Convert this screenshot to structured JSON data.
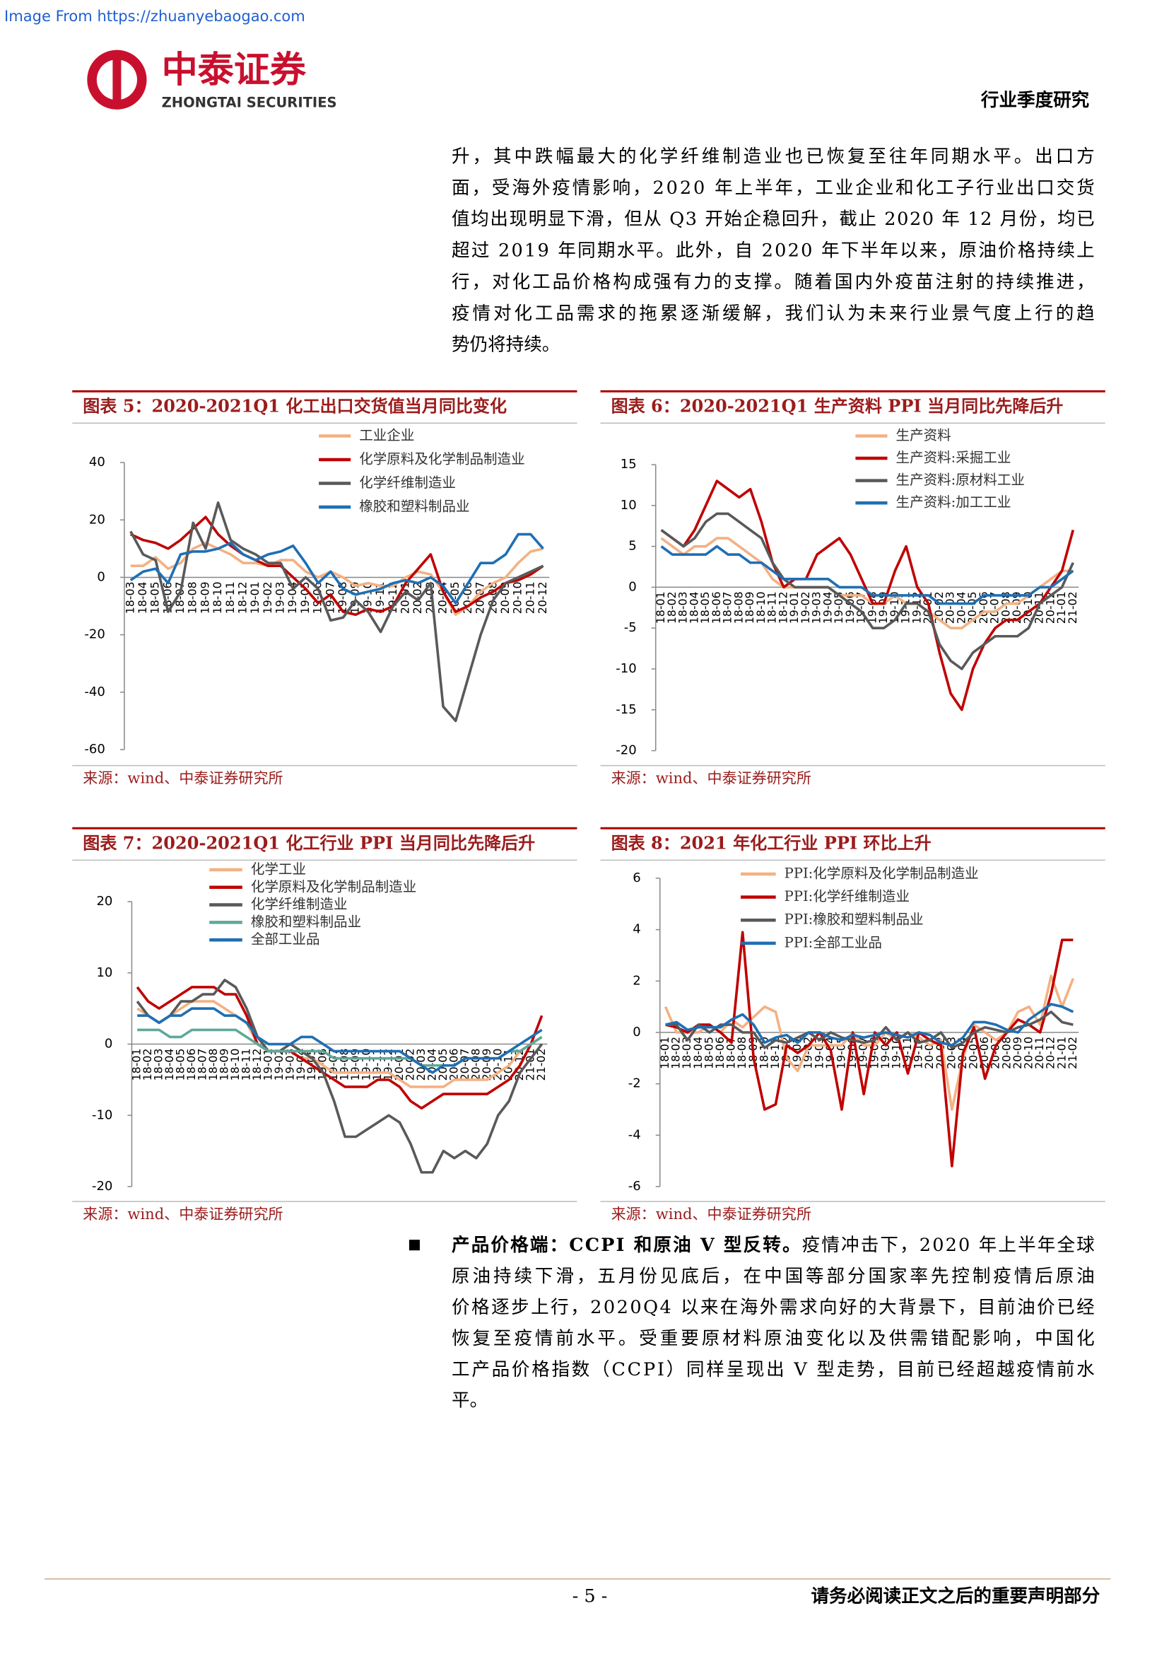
{
  "header": {
    "watermark": "Image From https://zhuanyebaogao.com",
    "logo_cn": "中泰证券",
    "logo_en": "ZHONGTAI SECURITIES",
    "report_type": "行业季度研究"
  },
  "body": {
    "paragraph_lines": [
      "升，其中跌幅最大的化学纤维制造业也已恢复至往年同期水平。出口方",
      "面，受海外疫情影响，2020 年上半年，工业企业和化工子行业出口交货",
      "值均出现明显下滑，但从 Q3 开始企稳回升，截止 2020 年 12 月份，均已",
      "超过 2019 年同期水平。此外，自 2020 年下半年以来，原油价格持续上",
      "行，对化工品价格构成强有力的支撑。随着国内外疫苗注射的持续推进，",
      "疫情对化工品需求的拖累逐渐缓解，我们认为未来行业景气度上行的趋",
      "势仍将持续。"
    ],
    "bullet_lead": "产品价格端：CCPI 和原油 V 型反转。",
    "bullet_lines": [
      "疫情冲击下，2020 年上半年全球",
      "原油持续下滑，五月份见底后，在中国等部分国家率先控制疫情后原油",
      "价格逐步上行，2020Q4 以来在海外需求向好的大背景下，目前油价已经",
      "恢复至疫情前水平。受重要原材料原油变化以及供需错配影响，中国化",
      "工产品价格指数（CCPI）同样呈现出 V 型走势，目前已经超越疫情前水",
      "平。"
    ]
  },
  "chart_data": [
    {
      "type": "line",
      "title": "图表 5：2020-2021Q1 化工出口交货值当月同比变化",
      "source": "来源：wind、中泰证券研究所",
      "categories": [
        "18-03",
        "18-04",
        "18-05",
        "18-06",
        "18-07",
        "18-08",
        "18-09",
        "18-10",
        "18-11",
        "18-12",
        "19-01",
        "19-02",
        "19-03",
        "19-04",
        "19-05",
        "19-06",
        "19-07",
        "19-08",
        "19-09",
        "19-10",
        "19-11",
        "19-12",
        "20-01",
        "20-02",
        "20-03",
        "20-04",
        "20-05",
        "20-06",
        "20-07",
        "20-08",
        "20-09",
        "20-10",
        "20-11",
        "20-12"
      ],
      "ylim": [
        -60,
        40
      ],
      "yticks": [
        -60,
        -40,
        -20,
        0,
        20,
        40
      ],
      "series": [
        {
          "name": "工业企业",
          "color": "#f4b183",
          "values": [
            4,
            4,
            7,
            3,
            5,
            10,
            12,
            10,
            8,
            5,
            5,
            4,
            6,
            6,
            2,
            0,
            2,
            0,
            -3,
            -2,
            -3,
            -3,
            0,
            2,
            1,
            -5,
            -13,
            -10,
            -5,
            -2,
            0,
            5,
            9,
            10
          ]
        },
        {
          "name": "化学原料及化学制品制造业",
          "color": "#c00000",
          "values": [
            15,
            13,
            12,
            10,
            13,
            17,
            21,
            15,
            11,
            8,
            6,
            4,
            4,
            0,
            -4,
            -9,
            -6,
            -12,
            -13,
            -11,
            -12,
            -10,
            -2,
            3,
            8,
            -5,
            -12,
            -10,
            -7,
            -5,
            -2,
            -1,
            1,
            4
          ]
        },
        {
          "name": "化学纤维制造业",
          "color": "#595959",
          "values": [
            16,
            8,
            6,
            -12,
            -5,
            19,
            10,
            26,
            13,
            10,
            8,
            5,
            5,
            -4,
            0,
            -4,
            -15,
            -14,
            -8,
            -12,
            -19,
            -10,
            -5,
            -8,
            -2,
            -45,
            -50,
            -35,
            -20,
            -8,
            -2,
            0,
            2,
            4
          ]
        },
        {
          "name": "橡胶和塑料制品业",
          "color": "#1f6fb4",
          "values": [
            -1,
            2,
            3,
            -2,
            8,
            9,
            9,
            10,
            12,
            8,
            6,
            8,
            9,
            11,
            5,
            -2,
            2,
            -4,
            -6,
            -5,
            -4,
            -2,
            -1,
            -2,
            0,
            -3,
            -9,
            -2,
            5,
            5,
            8,
            15,
            15,
            10
          ]
        }
      ]
    },
    {
      "type": "line",
      "title": "图表 6：2020-2021Q1 生产资料 PPI 当月同比先降后升",
      "source": "来源：wind、中泰证券研究所",
      "categories": [
        "18-01",
        "18-02",
        "18-03",
        "18-04",
        "18-05",
        "18-06",
        "18-07",
        "18-08",
        "18-09",
        "18-10",
        "18-11",
        "18-12",
        "19-01",
        "19-02",
        "19-03",
        "19-04",
        "19-05",
        "19-06",
        "19-07",
        "19-08",
        "19-09",
        "19-10",
        "19-11",
        "19-12",
        "20-01",
        "20-02",
        "20-03",
        "20-04",
        "20-05",
        "20-06",
        "20-07",
        "20-08",
        "20-09",
        "20-10",
        "20-11",
        "20-12",
        "21-01",
        "21-02"
      ],
      "ylim": [
        -20,
        15
      ],
      "yticks": [
        -20,
        -15,
        -10,
        -5,
        0,
        5,
        10,
        15
      ],
      "series": [
        {
          "name": "生产资料",
          "color": "#f4b183",
          "values": [
            6,
            5,
            4,
            5,
            5,
            6,
            6,
            5,
            4,
            3,
            1,
            0,
            0,
            0,
            0,
            0,
            -1,
            -1,
            -1,
            -2,
            -2,
            -1,
            -2,
            -2,
            -3,
            -4,
            -5,
            -5,
            -4,
            -3,
            -3,
            -2,
            -2,
            -1,
            0,
            1,
            2,
            2
          ]
        },
        {
          "name": "生产资料:采掘工业",
          "color": "#c00000",
          "values": [
            7,
            6,
            5,
            7,
            10,
            13,
            12,
            11,
            12,
            8,
            3,
            0,
            1,
            1,
            4,
            5,
            6,
            4,
            1,
            -2,
            -2,
            2,
            5,
            0,
            -2,
            -8,
            -13,
            -15,
            -10,
            -7,
            -5,
            -4,
            -4,
            -3,
            -2,
            0,
            2,
            7
          ]
        },
        {
          "name": "生产资料:原材料工业",
          "color": "#595959",
          "values": [
            7,
            6,
            5,
            6,
            8,
            9,
            9,
            8,
            7,
            6,
            3,
            1,
            0,
            0,
            0,
            0,
            -1,
            -2,
            -3,
            -5,
            -5,
            -4,
            -2,
            -2,
            -3,
            -7,
            -9,
            -10,
            -8,
            -7,
            -6,
            -6,
            -6,
            -5,
            -2,
            -1,
            0,
            3
          ]
        },
        {
          "name": "生产资料:加工工业",
          "color": "#1f6fb4",
          "values": [
            5,
            4,
            4,
            4,
            4,
            5,
            4,
            4,
            3,
            3,
            2,
            1,
            1,
            1,
            1,
            1,
            0,
            0,
            0,
            -1,
            -1,
            -1,
            -1,
            -1,
            -1,
            -2,
            -2,
            -2,
            -2,
            -1,
            -1,
            -1,
            -1,
            -1,
            0,
            0,
            1,
            2
          ]
        }
      ]
    },
    {
      "type": "line",
      "title": "图表 7：2020-2021Q1 化工行业 PPI 当月同比先降后升",
      "source": "来源：wind、中泰证券研究所",
      "categories": [
        "18-01",
        "18-02",
        "18-03",
        "18-04",
        "18-05",
        "18-06",
        "18-07",
        "18-08",
        "18-09",
        "18-10",
        "18-11",
        "18-12",
        "19-01",
        "19-02",
        "19-03",
        "19-04",
        "19-05",
        "19-06",
        "19-07",
        "19-08",
        "19-09",
        "19-10",
        "19-11",
        "19-12",
        "20-01",
        "20-02",
        "20-03",
        "20-04",
        "20-05",
        "20-06",
        "20-07",
        "20-08",
        "20-09",
        "20-10",
        "20-11",
        "20-12",
        "21-01",
        "21-02"
      ],
      "ylim": [
        -20,
        20
      ],
      "yticks": [
        -20,
        -10,
        0,
        10,
        20
      ],
      "series": [
        {
          "name": "化学工业",
          "color": "#f4b183",
          "values": [
            5,
            4,
            3,
            4,
            5,
            6,
            6,
            6,
            5,
            4,
            3,
            0,
            -1,
            -1,
            -1,
            -2,
            -2,
            -3,
            -4,
            -4,
            -4,
            -4,
            -4,
            -4,
            -5,
            -6,
            -6,
            -6,
            -6,
            -5,
            -5,
            -5,
            -5,
            -4,
            -3,
            -1,
            0,
            1
          ]
        },
        {
          "name": "化学原料及化学制品制造业",
          "color": "#c00000",
          "values": [
            8,
            6,
            5,
            6,
            7,
            8,
            8,
            8,
            7,
            7,
            4,
            0,
            -1,
            -1,
            -1,
            -2,
            -3,
            -4,
            -5,
            -6,
            -6,
            -6,
            -5,
            -5,
            -6,
            -8,
            -9,
            -8,
            -7,
            -7,
            -7,
            -7,
            -7,
            -6,
            -5,
            -3,
            0,
            4
          ]
        },
        {
          "name": "化学纤维制造业",
          "color": "#595959",
          "values": [
            6,
            4,
            3,
            4,
            6,
            6,
            7,
            7,
            9,
            8,
            5,
            1,
            -1,
            -1,
            0,
            -1,
            -2,
            -4,
            -8,
            -13,
            -13,
            -12,
            -11,
            -10,
            -11,
            -14,
            -18,
            -18,
            -15,
            -16,
            -15,
            -16,
            -14,
            -10,
            -8,
            -4,
            -2,
            0
          ]
        },
        {
          "name": "橡胶和塑料制品业",
          "color": "#5fa89a",
          "values": [
            2,
            2,
            2,
            1,
            1,
            2,
            2,
            2,
            2,
            2,
            1,
            0,
            -1,
            -1,
            -1,
            -1,
            -1,
            -1,
            -2,
            -2,
            -2,
            -2,
            -2,
            -2,
            -2,
            -2,
            -3,
            -3,
            -3,
            -3,
            -2,
            -2,
            -2,
            -2,
            -1,
            -1,
            0,
            1
          ]
        },
        {
          "name": "全部工业品",
          "color": "#1f6fb4",
          "values": [
            4,
            4,
            3,
            4,
            4,
            5,
            5,
            5,
            4,
            4,
            3,
            1,
            0,
            0,
            0,
            1,
            1,
            0,
            -1,
            -1,
            -1,
            -1,
            -1,
            -1,
            -1,
            -2,
            -3,
            -4,
            -3,
            -3,
            -2,
            -2,
            -2,
            -2,
            -1,
            0,
            1,
            2
          ]
        }
      ]
    },
    {
      "type": "line",
      "title": "图表 8：2021 年化工行业 PPI 环比上升",
      "source": "来源：wind、中泰证券研究所",
      "categories": [
        "18-01",
        "18-02",
        "18-03",
        "18-04",
        "18-05",
        "18-06",
        "18-07",
        "18-08",
        "18-09",
        "18-10",
        "18-11",
        "18-12",
        "19-01",
        "19-02",
        "19-03",
        "19-04",
        "19-05",
        "19-06",
        "19-07",
        "19-08",
        "19-09",
        "19-10",
        "19-11",
        "19-12",
        "20-01",
        "20-02",
        "20-03",
        "20-04",
        "20-05",
        "20-06",
        "20-07",
        "20-08",
        "20-09",
        "20-10",
        "20-11",
        "20-12",
        "21-01",
        "21-02"
      ],
      "ylim": [
        -6,
        6
      ],
      "yticks": [
        -6,
        -4,
        -2,
        0,
        2,
        4,
        6
      ],
      "series": [
        {
          "name": "PPI:化学原料及化学制品制造业",
          "color": "#f4b183",
          "values": [
            1,
            0,
            0,
            0,
            0.3,
            0,
            0.5,
            0.2,
            0.6,
            1,
            0.8,
            -1,
            -1.5,
            -0.5,
            -0.5,
            -0.5,
            -0.5,
            0,
            -0.5,
            -0.5,
            0,
            -0.3,
            0,
            -0.2,
            -0.5,
            -0.3,
            -3,
            -1,
            0.3,
            0,
            -0.3,
            0,
            0.8,
            1,
            0.3,
            2.2,
            1,
            2.1
          ]
        },
        {
          "name": "PPI:化学纤维制造业",
          "color": "#c00000",
          "values": [
            0.3,
            0.2,
            0,
            0.3,
            0.3,
            0,
            -0.4,
            3.9,
            -1,
            -3,
            -2.8,
            -0.5,
            -0.8,
            -0.5,
            0,
            -0.7,
            -3,
            0,
            -2.4,
            0,
            -0.5,
            0,
            -1.6,
            0,
            -0.3,
            -0.5,
            -5.2,
            -0.8,
            0.2,
            -1.8,
            -0.5,
            0,
            0.5,
            0.3,
            0,
            1.5,
            3.6,
            3.6
          ]
        },
        {
          "name": "PPI:橡胶和塑料制品业",
          "color": "#595959",
          "values": [
            0.3,
            0.3,
            -0.3,
            0.3,
            0,
            0.3,
            0.3,
            0,
            0,
            -0.6,
            -0.3,
            -0.4,
            -0.2,
            0,
            -0.3,
            0,
            -0.2,
            -0.3,
            -0.4,
            -0.3,
            0.2,
            -0.3,
            0,
            -0.4,
            -0.3,
            0,
            -0.6,
            -0.4,
            0,
            0.2,
            0.1,
            0,
            0.2,
            0.3,
            0.5,
            0.8,
            0.4,
            0.3
          ]
        },
        {
          "name": "PPI:全部工业品",
          "color": "#1f6fb4",
          "values": [
            0.3,
            0.4,
            0.1,
            0.2,
            0.2,
            0.2,
            0.5,
            0.7,
            0.3,
            -0.4,
            -0.2,
            -0.1,
            -0.4,
            0,
            0,
            -0.2,
            -0.3,
            -0.1,
            -0.2,
            -0.1,
            0,
            -0.1,
            -0.2,
            0,
            -0.1,
            -0.4,
            -0.5,
            -0.2,
            0.4,
            0.4,
            0.3,
            0.1,
            0,
            0.5,
            0.8,
            1.1,
            1,
            0.8
          ]
        }
      ]
    }
  ],
  "footer": {
    "page": "- 5 -",
    "disclaimer": "请务必阅读正文之后的重要声明部分"
  }
}
